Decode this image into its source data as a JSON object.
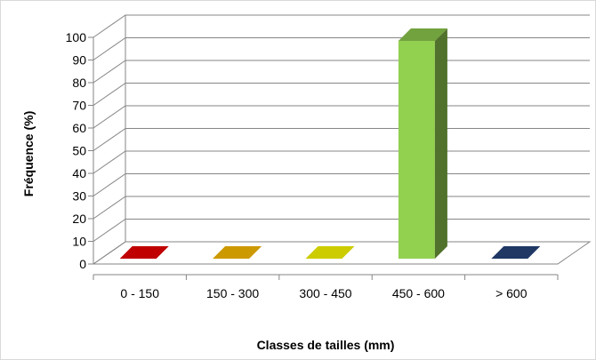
{
  "chart_data": {
    "type": "bar",
    "categories": [
      "0 - 150",
      "150 - 300",
      "300 - 450",
      "450 - 600",
      "> 600"
    ],
    "values": [
      0,
      0,
      0,
      100,
      0
    ],
    "colors": [
      "#c00000",
      "#cc9900",
      "#cccc00",
      "#92d050",
      "#1f3864"
    ],
    "xlabel": "Classes de tailles (mm)",
    "ylabel": "Fréquence (%)",
    "ylim": [
      0,
      100
    ],
    "yticks": [
      0,
      10,
      20,
      30,
      40,
      50,
      60,
      70,
      80,
      90,
      100
    ],
    "grid": true,
    "legend": false,
    "style": "3d-columns"
  }
}
